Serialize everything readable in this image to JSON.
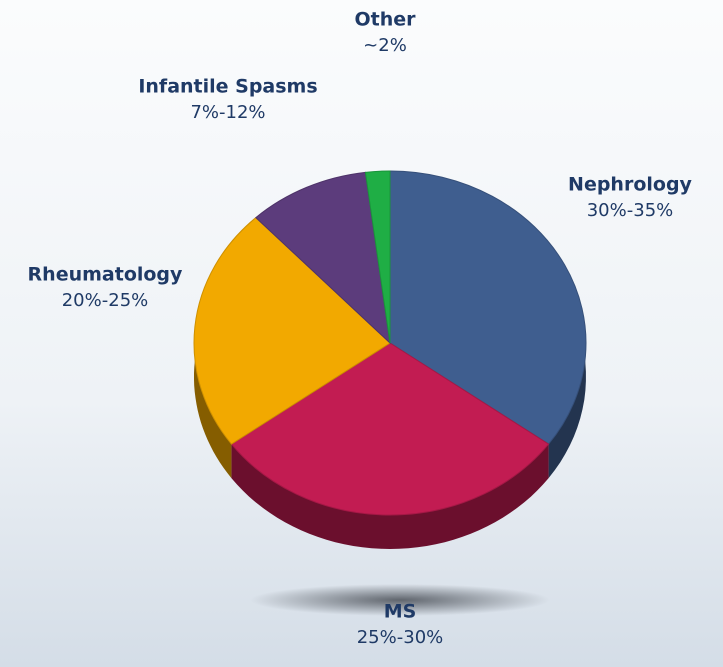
{
  "chart_data": {
    "type": "pie",
    "categories": [
      "Nephrology",
      "MS",
      "Rheumatology",
      "Infantile Spasms",
      "Other"
    ],
    "values": [
      35,
      30,
      23,
      10,
      2
    ],
    "value_labels": [
      "30%-35%",
      "25%-30%",
      "20%-25%",
      "7%-12%",
      "~2%"
    ],
    "colors": [
      "#3f5e8f",
      "#c21c52",
      "#f2a900",
      "#5c3c7c",
      "#1fae45"
    ]
  }
}
